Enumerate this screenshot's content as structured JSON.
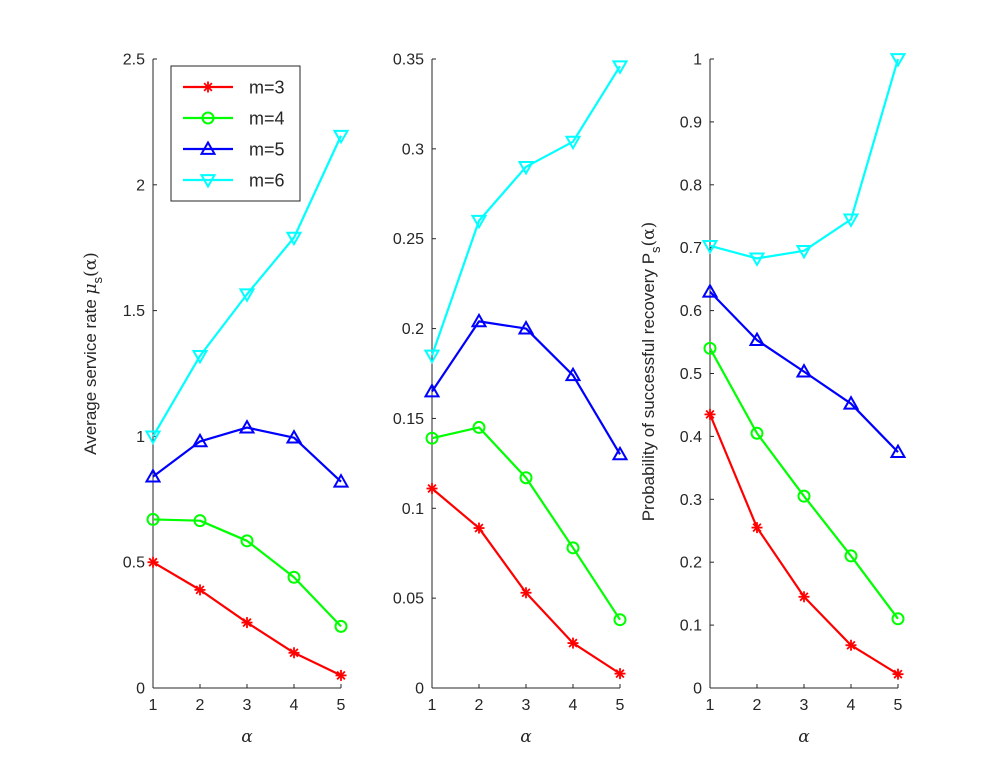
{
  "chart_data": [
    {
      "type": "line",
      "x": [
        1,
        2,
        3,
        4,
        5
      ],
      "xlabel": "α",
      "ylabel": "Average service rate μ_s(α)",
      "ylabel_parts": [
        "Average service rate ",
        "μ",
        "s",
        "(α)"
      ],
      "ylim": [
        0,
        2.5
      ],
      "xlim": [
        1,
        5
      ],
      "xticks": [
        "1",
        "2",
        "3",
        "4",
        "5"
      ],
      "yticks": [
        0,
        0.5,
        1,
        1.5,
        2,
        2.5
      ],
      "ytick_labels": [
        "0",
        "0.5",
        "1",
        "1.5",
        "2",
        "2.5"
      ],
      "legend_position": "top-left",
      "series": [
        {
          "name": "m=3",
          "color": "#ff0000",
          "marker": "asterisk",
          "values": [
            0.5,
            0.39,
            0.26,
            0.14,
            0.05
          ]
        },
        {
          "name": "m=4",
          "color": "#00ff00",
          "marker": "circle",
          "values": [
            0.67,
            0.665,
            0.585,
            0.44,
            0.245
          ]
        },
        {
          "name": "m=5",
          "color": "#0000ff",
          "marker": "triangle-up",
          "values": [
            0.84,
            0.98,
            1.035,
            0.995,
            0.82
          ]
        },
        {
          "name": "m=6",
          "color": "#00ffff",
          "marker": "triangle-down",
          "values": [
            1.0,
            1.32,
            1.565,
            1.79,
            2.195
          ]
        }
      ]
    },
    {
      "type": "line",
      "x": [
        1,
        2,
        3,
        4,
        5
      ],
      "xlabel": "α",
      "ylabel": "",
      "ylim": [
        0,
        0.35
      ],
      "xlim": [
        1,
        5
      ],
      "xticks": [
        "1",
        "2",
        "3",
        "4",
        "5"
      ],
      "yticks": [
        0,
        0.05,
        0.1,
        0.15,
        0.2,
        0.25,
        0.3,
        0.35
      ],
      "ytick_labels": [
        "0",
        "0.05",
        "0.1",
        "0.15",
        "0.2",
        "0.25",
        "0.3",
        "0.35"
      ],
      "series": [
        {
          "name": "m=3",
          "color": "#ff0000",
          "marker": "asterisk",
          "values": [
            0.111,
            0.089,
            0.053,
            0.025,
            0.008
          ]
        },
        {
          "name": "m=4",
          "color": "#00ff00",
          "marker": "circle",
          "values": [
            0.139,
            0.145,
            0.117,
            0.078,
            0.038
          ]
        },
        {
          "name": "m=5",
          "color": "#0000ff",
          "marker": "triangle-up",
          "values": [
            0.165,
            0.204,
            0.2,
            0.174,
            0.13
          ]
        },
        {
          "name": "m=6",
          "color": "#00ffff",
          "marker": "triangle-down",
          "values": [
            0.185,
            0.26,
            0.29,
            0.304,
            0.346
          ]
        }
      ]
    },
    {
      "type": "line",
      "x": [
        1,
        2,
        3,
        4,
        5
      ],
      "xlabel": "α",
      "ylabel": "Probability of successful recovery P_s(α)",
      "ylabel_parts": [
        "Probability of successful recovery P",
        "s",
        "(α)"
      ],
      "ylim": [
        0,
        1
      ],
      "xlim": [
        1,
        5
      ],
      "xticks": [
        "1",
        "2",
        "3",
        "4",
        "5"
      ],
      "yticks": [
        0,
        0.1,
        0.2,
        0.3,
        0.4,
        0.5,
        0.6,
        0.7,
        0.8,
        0.9,
        1
      ],
      "ytick_labels": [
        "0",
        "0.1",
        "0.2",
        "0.3",
        "0.4",
        "0.5",
        "0.6",
        "0.7",
        "0.8",
        "0.9",
        "1"
      ],
      "series": [
        {
          "name": "m=3",
          "color": "#ff0000",
          "marker": "asterisk",
          "values": [
            0.435,
            0.255,
            0.145,
            0.068,
            0.022
          ]
        },
        {
          "name": "m=4",
          "color": "#00ff00",
          "marker": "circle",
          "values": [
            0.54,
            0.405,
            0.305,
            0.21,
            0.11
          ]
        },
        {
          "name": "m=5",
          "color": "#0000ff",
          "marker": "triangle-up",
          "values": [
            0.63,
            0.553,
            0.503,
            0.452,
            0.375
          ]
        },
        {
          "name": "m=6",
          "color": "#00ffff",
          "marker": "triangle-down",
          "values": [
            0.703,
            0.683,
            0.695,
            0.745,
            1.0
          ]
        }
      ]
    }
  ]
}
